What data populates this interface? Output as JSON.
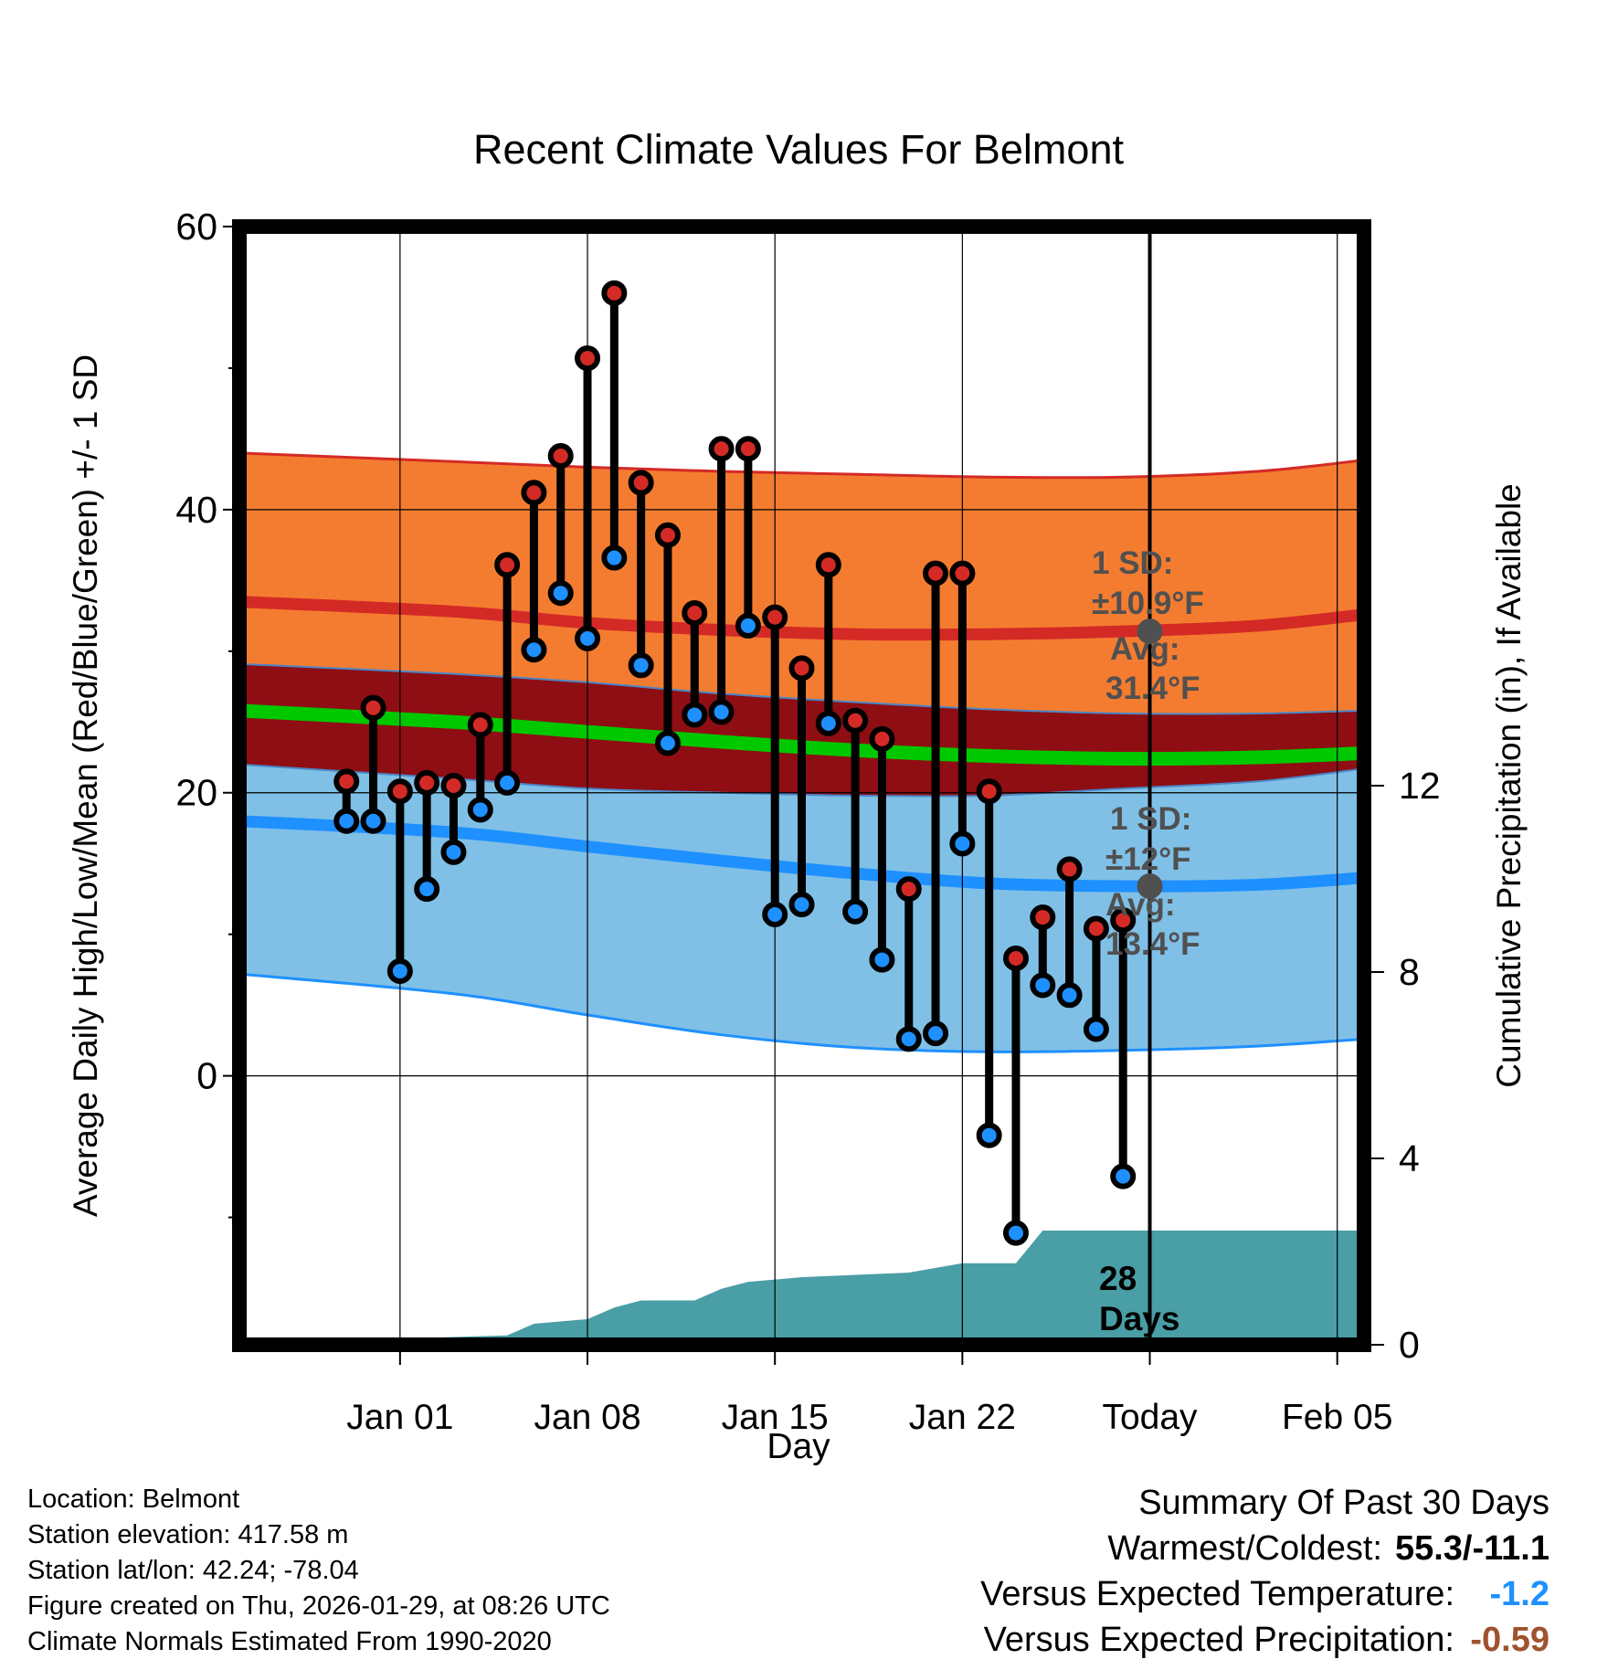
{
  "chart_data": {
    "type": "line",
    "title": "Recent Climate Values For Belmont",
    "xlabel": "Day",
    "ylabel": "Average Daily High/Low/Mean (Red/Blue/Green) +/- 1 SD",
    "ylabel_right": "Cumulative Precipitation (in), If Available",
    "ylim": [
      -19,
      60
    ],
    "ylim_right": [
      0,
      24
    ],
    "x_range": [
      -3,
      39
    ],
    "x_unit": "days since Dec 29",
    "x_ticks": [
      {
        "x": 3,
        "label": "Jan 01"
      },
      {
        "x": 10,
        "label": "Jan 08"
      },
      {
        "x": 17,
        "label": "Jan 15"
      },
      {
        "x": 24,
        "label": "Jan 22"
      },
      {
        "x": 31,
        "label": "Today"
      },
      {
        "x": 38,
        "label": "Feb 05"
      }
    ],
    "y_ticks": [
      0,
      20,
      40,
      60
    ],
    "y_minor_ticks": [
      -10,
      10,
      30,
      50
    ],
    "y_right_ticks": [
      0,
      4,
      8,
      12
    ],
    "today_x": 31,
    "normals": {
      "x": [
        0,
        5,
        10,
        15,
        20,
        25,
        30,
        35,
        40
      ],
      "high_avg": [
        33.5,
        32.8,
        32.0,
        31.5,
        31.2,
        31.2,
        31.4,
        31.8,
        32.6
      ],
      "high_plus_sd": [
        44.0,
        43.4,
        43.0,
        42.7,
        42.5,
        42.3,
        42.3,
        42.7,
        43.5
      ],
      "high_minus_sd": [
        29.1,
        28.4,
        27.8,
        27.0,
        26.4,
        25.9,
        25.6,
        25.6,
        25.8
      ],
      "mean": [
        25.8,
        25.0,
        24.3,
        23.6,
        23.0,
        22.6,
        22.4,
        22.5,
        22.8
      ],
      "low_avg": [
        18.0,
        17.2,
        16.2,
        15.2,
        14.3,
        13.6,
        13.4,
        13.5,
        14.0
      ],
      "low_plus_sd": [
        22.0,
        21.0,
        20.3,
        20.0,
        19.8,
        19.8,
        20.3,
        20.8,
        21.7
      ],
      "low_minus_sd": [
        7.2,
        5.8,
        4.3,
        2.9,
        2.0,
        1.7,
        1.8,
        2.1,
        2.6
      ]
    },
    "observations": {
      "x": [
        1,
        2,
        3,
        4,
        5,
        6,
        7,
        8,
        9,
        10,
        11,
        12,
        13,
        14,
        15,
        16,
        17,
        18,
        19,
        20,
        21,
        22,
        23,
        24,
        25,
        26,
        27,
        28,
        29,
        30
      ],
      "high": [
        20.8,
        26.0,
        20.1,
        20.7,
        20.5,
        24.8,
        36.1,
        41.2,
        43.8,
        50.7,
        55.3,
        41.9,
        38.2,
        32.7,
        44.3,
        44.3,
        32.4,
        28.8,
        36.1,
        25.1,
        23.8,
        13.2,
        35.5,
        35.5,
        20.1,
        8.3,
        11.2,
        14.6,
        10.4,
        11.0
      ],
      "low": [
        18.0,
        18.0,
        7.4,
        13.2,
        15.8,
        18.8,
        20.7,
        30.1,
        34.1,
        30.9,
        36.6,
        29.0,
        23.5,
        25.5,
        25.7,
        31.8,
        11.4,
        12.1,
        24.9,
        11.6,
        8.2,
        2.6,
        3.0,
        16.4,
        -4.2,
        -11.1,
        6.4,
        5.7,
        3.3,
        -7.1
      ]
    },
    "precip_cumulative": {
      "x": [
        0,
        3,
        4,
        7,
        8,
        10,
        11,
        12,
        14,
        15,
        16,
        17,
        18,
        20,
        22,
        23,
        24,
        25,
        26,
        27,
        28,
        31,
        39
      ],
      "values": [
        0.0,
        0.1,
        0.15,
        0.2,
        0.45,
        0.55,
        0.8,
        0.95,
        0.95,
        1.2,
        1.35,
        1.4,
        1.45,
        1.5,
        1.55,
        1.65,
        1.75,
        1.75,
        1.75,
        2.45,
        2.45,
        2.45,
        2.45
      ]
    },
    "annotations": {
      "high_sd_title": "1 SD:",
      "high_sd_value": "±10.9°F",
      "high_avg_title": "Avg:",
      "high_avg_value": "31.4°F",
      "high_avg": 31.4,
      "low_sd_title": "1 SD:",
      "low_sd_value": "±12°F",
      "low_avg_title": "Avg:",
      "low_avg_value": "13.4°F",
      "low_avg": 13.4,
      "days_count": "28",
      "days_word": "Days"
    },
    "colors": {
      "high_band": "#f47c30",
      "high_line": "#d42a26",
      "mean_band": "#8e0e13",
      "mean_line": "#00c800",
      "low_band": "#80c0e6",
      "low_line": "#1e90ff",
      "precip": "#4a9ea6",
      "high_marker": "#d42a26",
      "low_marker": "#1e90ff",
      "annotation": "#505050"
    }
  },
  "info": {
    "location": "Location: Belmont",
    "elevation": "Station elevation: 417.58 m",
    "latlon": "Station lat/lon: 42.24; -78.04",
    "created": "Figure created on Thu, 2026-01-29, at 08:26 UTC",
    "normals": "Climate Normals Estimated From 1990-2020"
  },
  "summary": {
    "title": "Summary Of Past 30 Days",
    "warm_cold_label": "Warmest/Coldest:",
    "warm_cold_value": "55.3/-11.1",
    "temp_label": "Versus Expected Temperature:",
    "temp_value": "-1.2",
    "temp_color": "#1e90ff",
    "precip_label": "Versus Expected Precipitation:",
    "precip_value": "-0.59",
    "precip_color": "#a0522d"
  }
}
